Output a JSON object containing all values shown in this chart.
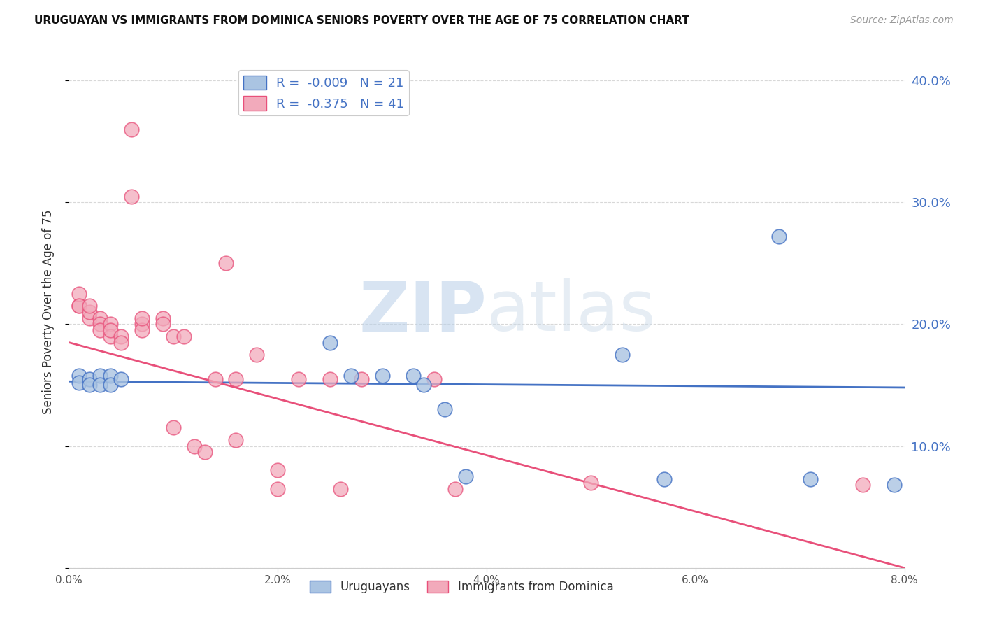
{
  "title": "URUGUAYAN VS IMMIGRANTS FROM DOMINICA SENIORS POVERTY OVER THE AGE OF 75 CORRELATION CHART",
  "source": "Source: ZipAtlas.com",
  "ylabel": "Seniors Poverty Over the Age of 75",
  "legend_label_blue": "Uruguayans",
  "legend_label_pink": "Immigrants from Dominica",
  "xmin": 0.0,
  "xmax": 0.08,
  "ymin": 0.0,
  "ymax": 0.42,
  "yticks": [
    0.0,
    0.1,
    0.2,
    0.3,
    0.4
  ],
  "ytick_labels": [
    "",
    "10.0%",
    "20.0%",
    "30.0%",
    "40.0%"
  ],
  "xticks": [
    0.0,
    0.02,
    0.04,
    0.06,
    0.08
  ],
  "xtick_labels": [
    "0.0%",
    "2.0%",
    "4.0%",
    "6.0%",
    "8.0%"
  ],
  "color_blue": "#aac4e2",
  "color_pink": "#f2aabb",
  "line_color_blue": "#4472c4",
  "line_color_pink": "#e8507a",
  "text_color_blue": "#4472c4",
  "text_color_dark": "#222222",
  "blue_points_x": [
    0.001,
    0.001,
    0.002,
    0.002,
    0.003,
    0.003,
    0.004,
    0.004,
    0.005,
    0.025,
    0.027,
    0.03,
    0.033,
    0.034,
    0.036,
    0.038,
    0.053,
    0.057,
    0.068,
    0.071,
    0.079
  ],
  "blue_points_y": [
    0.158,
    0.152,
    0.155,
    0.15,
    0.158,
    0.15,
    0.158,
    0.15,
    0.155,
    0.185,
    0.158,
    0.158,
    0.158,
    0.15,
    0.13,
    0.075,
    0.175,
    0.073,
    0.272,
    0.073,
    0.068
  ],
  "pink_points_x": [
    0.001,
    0.001,
    0.001,
    0.002,
    0.002,
    0.002,
    0.003,
    0.003,
    0.003,
    0.004,
    0.004,
    0.004,
    0.005,
    0.005,
    0.006,
    0.006,
    0.007,
    0.007,
    0.007,
    0.009,
    0.009,
    0.01,
    0.01,
    0.011,
    0.012,
    0.013,
    0.014,
    0.015,
    0.016,
    0.016,
    0.018,
    0.02,
    0.02,
    0.022,
    0.025,
    0.026,
    0.028,
    0.035,
    0.037,
    0.05,
    0.076
  ],
  "pink_points_y": [
    0.215,
    0.225,
    0.215,
    0.205,
    0.21,
    0.215,
    0.205,
    0.2,
    0.195,
    0.2,
    0.19,
    0.195,
    0.19,
    0.185,
    0.36,
    0.305,
    0.2,
    0.195,
    0.205,
    0.205,
    0.2,
    0.115,
    0.19,
    0.19,
    0.1,
    0.095,
    0.155,
    0.25,
    0.105,
    0.155,
    0.175,
    0.065,
    0.08,
    0.155,
    0.155,
    0.065,
    0.155,
    0.155,
    0.065,
    0.07,
    0.068
  ],
  "blue_trend_x": [
    0.0,
    0.08
  ],
  "blue_trend_y": [
    0.153,
    0.148
  ],
  "pink_trend_x": [
    0.0,
    0.08
  ],
  "pink_trend_y": [
    0.185,
    0.0
  ],
  "watermark_zip": "ZIP",
  "watermark_atlas": "atlas",
  "background_color": "#ffffff",
  "grid_color": "#d8d8d8"
}
